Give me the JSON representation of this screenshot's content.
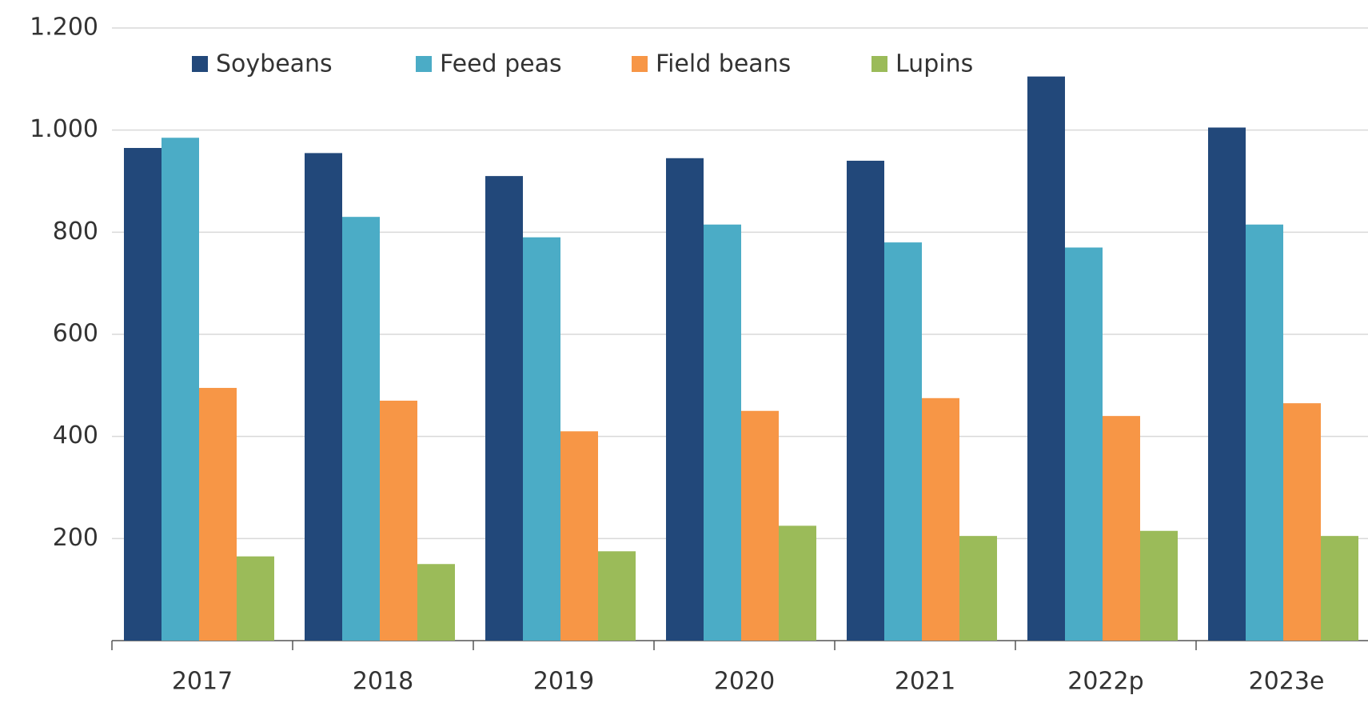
{
  "chart_data": {
    "type": "bar",
    "categories": [
      "2017",
      "2018",
      "2019",
      "2020",
      "2021",
      "2022p",
      "2023e"
    ],
    "series": [
      {
        "name": "Soybeans",
        "color": "#22487a",
        "values": [
          965,
          955,
          910,
          945,
          940,
          1105,
          1005
        ]
      },
      {
        "name": "Feed peas",
        "color": "#4bacc6",
        "values": [
          985,
          830,
          790,
          815,
          780,
          770,
          815
        ]
      },
      {
        "name": "Field beans",
        "color": "#f79646",
        "values": [
          495,
          470,
          410,
          450,
          475,
          440,
          465
        ]
      },
      {
        "name": "Lupins",
        "color": "#9bbb59",
        "values": [
          165,
          150,
          175,
          225,
          205,
          215,
          205
        ]
      }
    ],
    "ylim": [
      0,
      1200
    ],
    "yticks": [
      200,
      400,
      600,
      800,
      {
        "value": 1000,
        "label": "1.000"
      },
      {
        "value": 1200,
        "label": "1.200"
      }
    ],
    "grid": true,
    "legend": "top"
  }
}
